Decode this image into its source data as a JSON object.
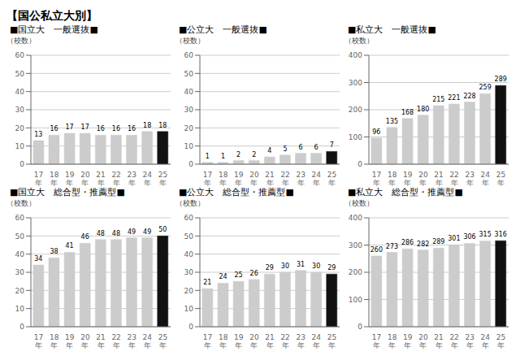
{
  "title": "【国公私立大別】",
  "chart_data": [
    {
      "type": "bar",
      "title": "■国立大　一般選抜■",
      "ylabel": "（校数）",
      "categories": [
        "17\n年",
        "18\n年",
        "19\n年",
        "20\n年",
        "21\n年",
        "22\n年",
        "23\n年",
        "24\n年",
        "25\n年"
      ],
      "values": [
        13,
        16,
        17,
        17,
        16,
        16,
        16,
        18,
        18
      ],
      "colors": [
        "#cccccc",
        "#cccccc",
        "#cccccc",
        "#cccccc",
        "#cccccc",
        "#cccccc",
        "#cccccc",
        "#cccccc",
        "#111111"
      ],
      "ylim": [
        0,
        60
      ],
      "yticks": [
        0,
        10,
        20,
        30,
        40,
        50,
        60
      ],
      "grid": true,
      "data_labels": true
    },
    {
      "type": "bar",
      "title": "■公立大　一般選抜■",
      "ylabel": "（校数）",
      "categories": [
        "17\n年",
        "18\n年",
        "19\n年",
        "20\n年",
        "21\n年",
        "22\n年",
        "23\n年",
        "24\n年",
        "25\n年"
      ],
      "values": [
        1,
        1,
        2,
        2,
        4,
        5,
        6,
        6,
        7
      ],
      "colors": [
        "#cccccc",
        "#cccccc",
        "#cccccc",
        "#cccccc",
        "#cccccc",
        "#cccccc",
        "#cccccc",
        "#cccccc",
        "#111111"
      ],
      "ylim": [
        0,
        60
      ],
      "yticks": [
        0,
        10,
        20,
        30,
        40,
        50,
        60
      ],
      "grid": true,
      "data_labels": true
    },
    {
      "type": "bar",
      "title": "■私立大　一般選抜■",
      "ylabel": "（校数）",
      "categories": [
        "17\n年",
        "18\n年",
        "19\n年",
        "20\n年",
        "21\n年",
        "22\n年",
        "23\n年",
        "24\n年",
        "25\n年"
      ],
      "values": [
        96,
        135,
        168,
        180,
        215,
        221,
        228,
        259,
        289
      ],
      "colors": [
        "#cccccc",
        "#cccccc",
        "#cccccc",
        "#cccccc",
        "#cccccc",
        "#cccccc",
        "#cccccc",
        "#cccccc",
        "#111111"
      ],
      "ylim": [
        0,
        400
      ],
      "yticks": [
        0,
        100,
        200,
        300,
        400
      ],
      "grid": true,
      "data_labels": true
    },
    {
      "type": "bar",
      "title": "■国立大　総合型・推薦型■",
      "ylabel": "（校数）",
      "categories": [
        "17\n年",
        "18\n年",
        "19\n年",
        "20\n年",
        "21\n年",
        "22\n年",
        "23\n年",
        "24\n年",
        "25\n年"
      ],
      "values": [
        34,
        38,
        41,
        46,
        48,
        48,
        49,
        49,
        50
      ],
      "colors": [
        "#cccccc",
        "#cccccc",
        "#cccccc",
        "#cccccc",
        "#cccccc",
        "#cccccc",
        "#cccccc",
        "#cccccc",
        "#111111"
      ],
      "ylim": [
        0,
        60
      ],
      "yticks": [
        0,
        10,
        20,
        30,
        40,
        50,
        60
      ],
      "grid": true,
      "data_labels": true
    },
    {
      "type": "bar",
      "title": "■公立大　総合型・推薦型■",
      "ylabel": "（校数）",
      "categories": [
        "17\n年",
        "18\n年",
        "19\n年",
        "20\n年",
        "21\n年",
        "22\n年",
        "23\n年",
        "24\n年",
        "25\n年"
      ],
      "values": [
        21,
        24,
        25,
        26,
        29,
        30,
        31,
        30,
        29
      ],
      "colors": [
        "#cccccc",
        "#cccccc",
        "#cccccc",
        "#cccccc",
        "#cccccc",
        "#cccccc",
        "#cccccc",
        "#cccccc",
        "#111111"
      ],
      "ylim": [
        0,
        60
      ],
      "yticks": [
        0,
        10,
        20,
        30,
        40,
        50,
        60
      ],
      "grid": true,
      "data_labels": true
    },
    {
      "type": "bar",
      "title": "■私立大　総合型・推薦型■",
      "ylabel": "（校数）",
      "categories": [
        "17\n年",
        "18\n年",
        "19\n年",
        "20\n年",
        "21\n年",
        "22\n年",
        "23\n年",
        "24\n年",
        "25\n年"
      ],
      "values": [
        260,
        273,
        286,
        282,
        289,
        301,
        306,
        315,
        316
      ],
      "colors": [
        "#cccccc",
        "#cccccc",
        "#cccccc",
        "#cccccc",
        "#cccccc",
        "#cccccc",
        "#cccccc",
        "#cccccc",
        "#111111"
      ],
      "ylim": [
        0,
        400
      ],
      "yticks": [
        0,
        100,
        200,
        300,
        400
      ],
      "grid": true,
      "data_labels": true
    }
  ]
}
